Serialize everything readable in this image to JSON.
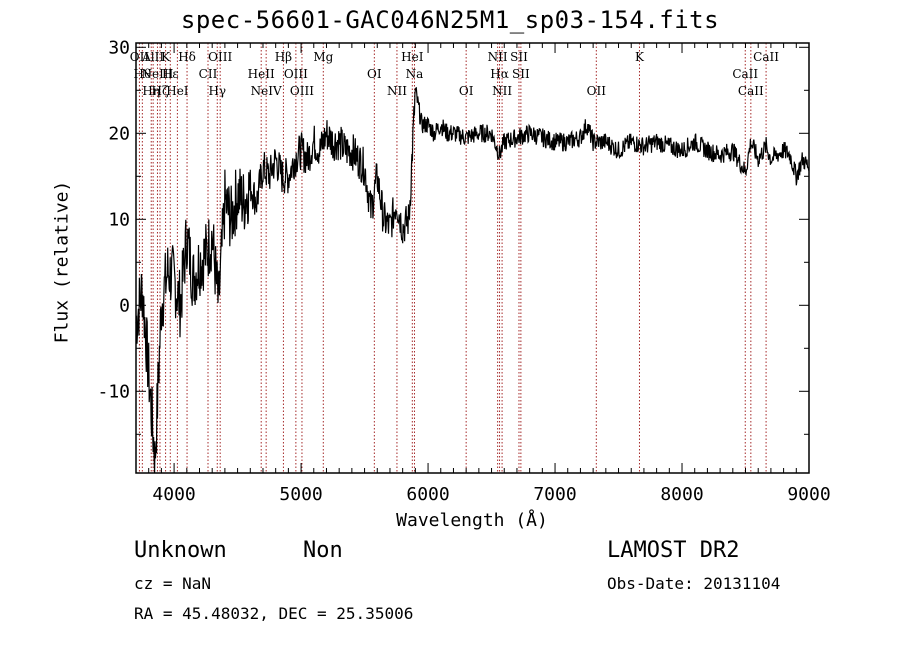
{
  "title": "spec-56601-GAC046N25M1_sp03-154.fits",
  "chart_data": {
    "type": "line",
    "title": "spec-56601-GAC046N25M1_sp03-154.fits",
    "xlabel": "Wavelength (Å)",
    "ylabel": "Flux (relative)",
    "xlim": [
      3700,
      9000
    ],
    "ylim": [
      -19.5,
      30.5
    ],
    "xticks": [
      4000,
      5000,
      6000,
      7000,
      8000,
      9000
    ],
    "yticks": [
      -10,
      0,
      10,
      20,
      30
    ],
    "grid": false,
    "series": [
      {
        "x": [
          3700,
          3750,
          3800,
          3850,
          3900,
          3950,
          4000,
          4050,
          4100,
          4150,
          4200,
          4250,
          4300,
          4350,
          4400,
          4450,
          4500,
          4550,
          4600,
          4650,
          4700,
          4750,
          4800,
          4850,
          4900,
          4950,
          5000,
          5050,
          5100,
          5150,
          5200,
          5250,
          5300,
          5350,
          5400,
          5450,
          5500,
          5550,
          5600,
          5650,
          5700,
          5750,
          5800,
          5850,
          5900,
          5950,
          6000,
          6050,
          6100,
          6150,
          6200,
          6300,
          6400,
          6500,
          6563,
          6600,
          6700,
          6800,
          6900,
          7000,
          7100,
          7200,
          7250,
          7300,
          7400,
          7500,
          7600,
          7700,
          7800,
          7900,
          8000,
          8100,
          8200,
          8300,
          8400,
          8500,
          8542,
          8600,
          8662,
          8700,
          8800,
          8850,
          8900,
          8950,
          9000
        ],
        "y": [
          -2,
          2,
          -8,
          -18,
          0,
          4,
          3,
          0,
          8,
          3,
          5,
          6,
          8,
          0,
          12,
          10,
          13,
          12,
          14,
          12,
          16,
          15,
          17,
          15,
          15,
          17,
          18,
          17,
          19,
          18,
          20,
          19,
          19,
          18,
          18,
          17,
          16,
          11,
          15,
          10,
          9,
          12,
          9,
          10,
          25,
          21,
          21,
          20,
          21,
          20,
          20,
          19.5,
          20,
          20,
          17.5,
          19,
          19.5,
          20,
          19.5,
          19,
          19,
          19.5,
          21,
          19,
          19,
          18,
          19,
          18.5,
          19,
          18.5,
          18,
          19,
          18,
          17.5,
          18,
          15.5,
          19,
          17,
          18.5,
          17,
          18,
          17.5,
          15,
          17,
          16
        ]
      }
    ],
    "lines": [
      {
        "w": 3727,
        "label": "OII"
      },
      {
        "w": 3750,
        "label": "Hθ"
      },
      {
        "w": 3820,
        "label": "Hη"
      },
      {
        "w": 3835,
        "label": "AlII"
      },
      {
        "w": 3869,
        "label": "NeIII"
      },
      {
        "w": 3889,
        "label": "Hζ"
      },
      {
        "w": 3933,
        "label": "K"
      },
      {
        "w": 3970,
        "label": "Hε"
      },
      {
        "w": 4026,
        "label": "HeI"
      },
      {
        "w": 4102,
        "label": "Hδ"
      },
      {
        "w": 4267,
        "label": "CII"
      },
      {
        "w": 4340,
        "label": "Hγ"
      },
      {
        "w": 4363,
        "label": "OIII"
      },
      {
        "w": 4686,
        "label": "HeII"
      },
      {
        "w": 4725,
        "label": "NeIV"
      },
      {
        "w": 4861,
        "label": "Hβ"
      },
      {
        "w": 4959,
        "label": "OIII"
      },
      {
        "w": 5007,
        "label": "OIII"
      },
      {
        "w": 5175,
        "label": "Mg"
      },
      {
        "w": 5577,
        "label": "OI"
      },
      {
        "w": 5755,
        "label": "NII"
      },
      {
        "w": 5876,
        "label": "HeI"
      },
      {
        "w": 5893,
        "label": "Na"
      },
      {
        "w": 6300,
        "label": "OI"
      },
      {
        "w": 6548,
        "label": "NII"
      },
      {
        "w": 6563,
        "label": "Hα"
      },
      {
        "w": 6583,
        "label": "NII"
      },
      {
        "w": 6716,
        "label": "SII"
      },
      {
        "w": 6731,
        "label": "SII"
      },
      {
        "w": 7325,
        "label": "OII"
      },
      {
        "w": 7665,
        "label": "K"
      },
      {
        "w": 8498,
        "label": "CaII"
      },
      {
        "w": 8542,
        "label": "CaII"
      },
      {
        "w": 8662,
        "label": "CaII"
      }
    ]
  },
  "info": {
    "object_class": "Unknown",
    "subclass": "Non",
    "survey": "LAMOST DR2",
    "cz": "cz = NaN",
    "obs_date": "Obs-Date: 20131104",
    "coords": "RA =  45.48032, DEC =  25.35006"
  },
  "colors": {
    "marker_line": "#a52a2a",
    "spectrum": "#000000"
  }
}
